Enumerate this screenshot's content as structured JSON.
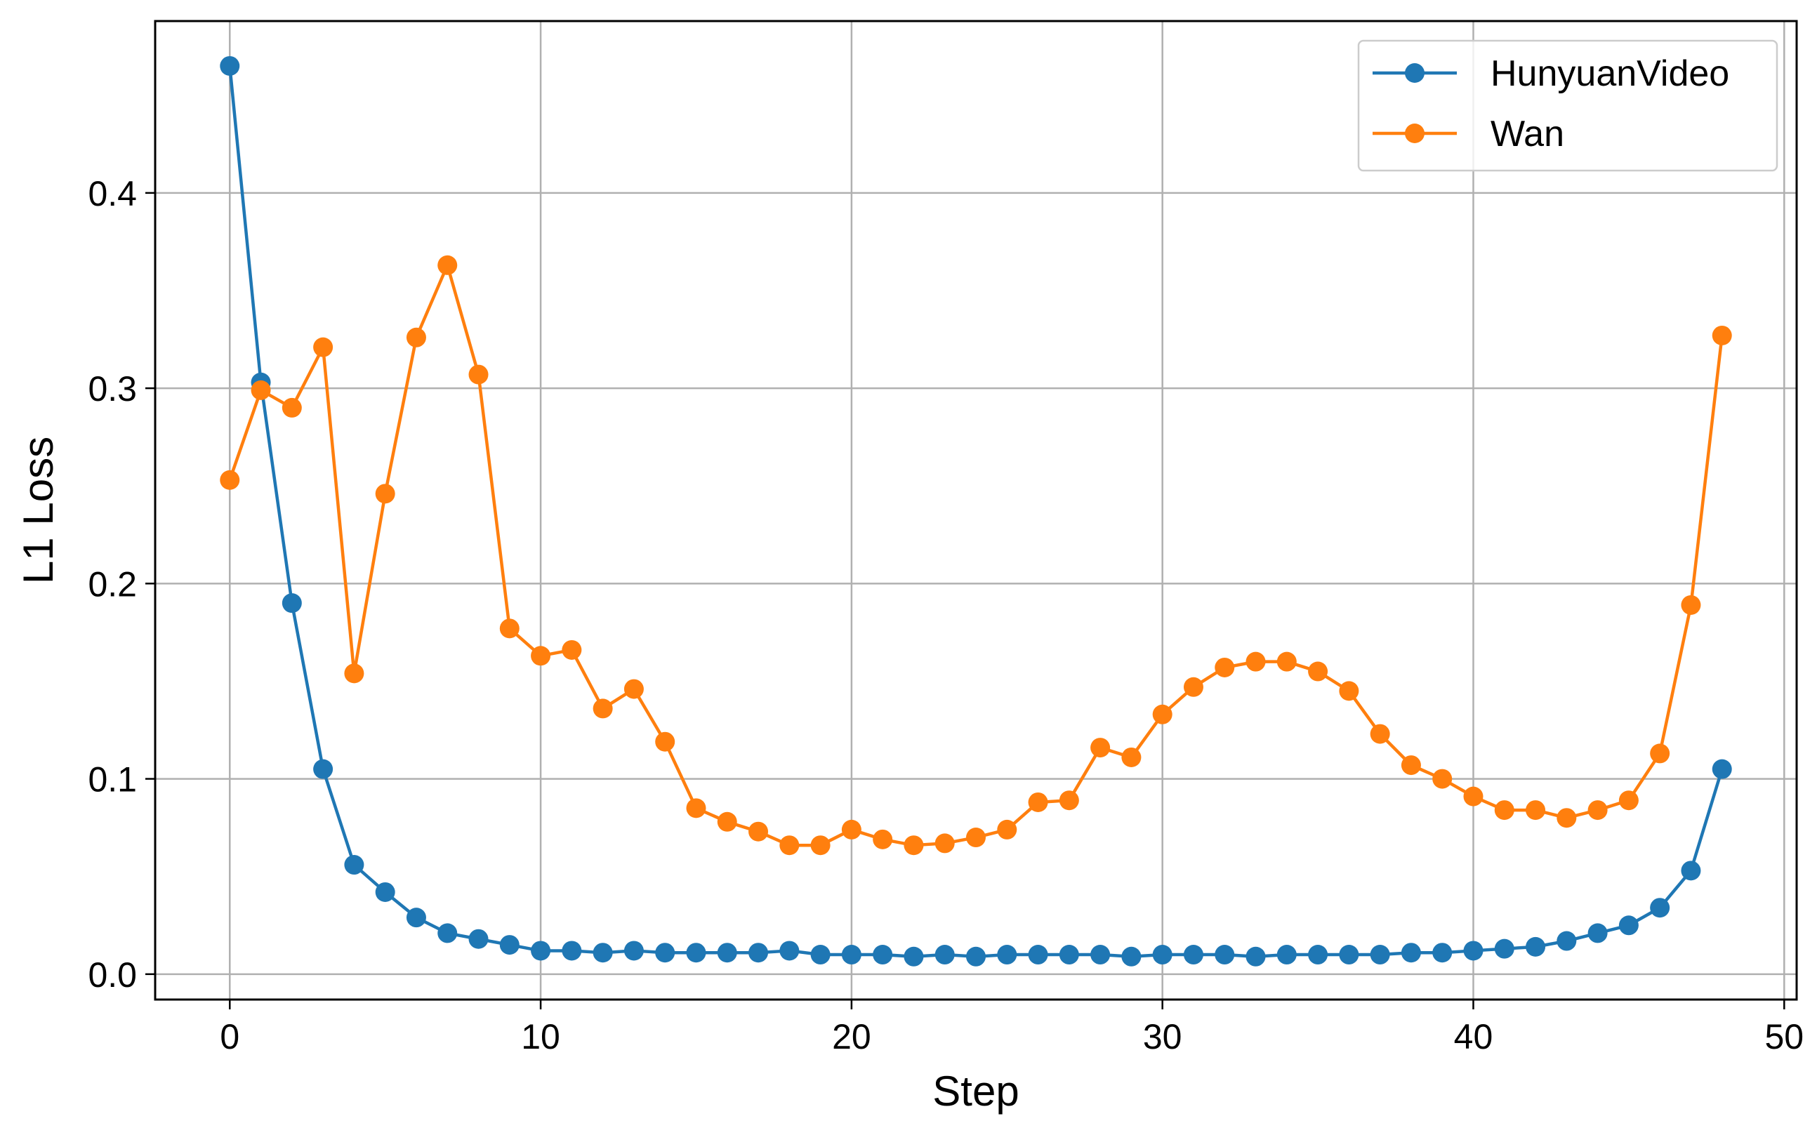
{
  "chart_data": {
    "type": "line",
    "xlabel": "Step",
    "ylabel": "L1 Loss",
    "xlim": [
      -2.4,
      50.4
    ],
    "ylim": [
      -0.013,
      0.488
    ],
    "xticks": [
      0,
      10,
      20,
      30,
      40,
      50
    ],
    "yticks": [
      0.0,
      0.1,
      0.2,
      0.3,
      0.4
    ],
    "xtick_labels": [
      "0",
      "10",
      "20",
      "30",
      "40",
      "50"
    ],
    "ytick_labels": [
      "0.0",
      "0.1",
      "0.2",
      "0.3",
      "0.4"
    ],
    "grid": true,
    "legend_position": "top-right",
    "markers": true,
    "x": [
      0,
      1,
      2,
      3,
      4,
      5,
      6,
      7,
      8,
      9,
      10,
      11,
      12,
      13,
      14,
      15,
      16,
      17,
      18,
      19,
      20,
      21,
      22,
      23,
      24,
      25,
      26,
      27,
      28,
      29,
      30,
      31,
      32,
      33,
      34,
      35,
      36,
      37,
      38,
      39,
      40,
      41,
      42,
      43,
      44,
      45,
      46,
      47,
      48
    ],
    "series": [
      {
        "name": "HunyuanVideo",
        "color": "#1f77b4",
        "values": [
          0.465,
          0.303,
          0.19,
          0.105,
          0.056,
          0.042,
          0.029,
          0.021,
          0.018,
          0.015,
          0.012,
          0.012,
          0.011,
          0.012,
          0.011,
          0.011,
          0.011,
          0.011,
          0.012,
          0.01,
          0.01,
          0.01,
          0.009,
          0.01,
          0.009,
          0.01,
          0.01,
          0.01,
          0.01,
          0.009,
          0.01,
          0.01,
          0.01,
          0.009,
          0.01,
          0.01,
          0.01,
          0.01,
          0.011,
          0.011,
          0.012,
          0.013,
          0.014,
          0.017,
          0.021,
          0.025,
          0.034,
          0.053,
          0.105
        ]
      },
      {
        "name": "Wan",
        "color": "#ff7f0e",
        "values": [
          0.253,
          0.299,
          0.29,
          0.321,
          0.154,
          0.246,
          0.326,
          0.363,
          0.307,
          0.177,
          0.163,
          0.166,
          0.136,
          0.146,
          0.119,
          0.085,
          0.078,
          0.073,
          0.066,
          0.066,
          0.074,
          0.069,
          0.066,
          0.067,
          0.07,
          0.074,
          0.088,
          0.089,
          0.116,
          0.111,
          0.133,
          0.147,
          0.157,
          0.16,
          0.16,
          0.155,
          0.145,
          0.123,
          0.107,
          0.1,
          0.091,
          0.084,
          0.084,
          0.08,
          0.084,
          0.089,
          0.113,
          0.189,
          0.327
        ]
      }
    ]
  }
}
